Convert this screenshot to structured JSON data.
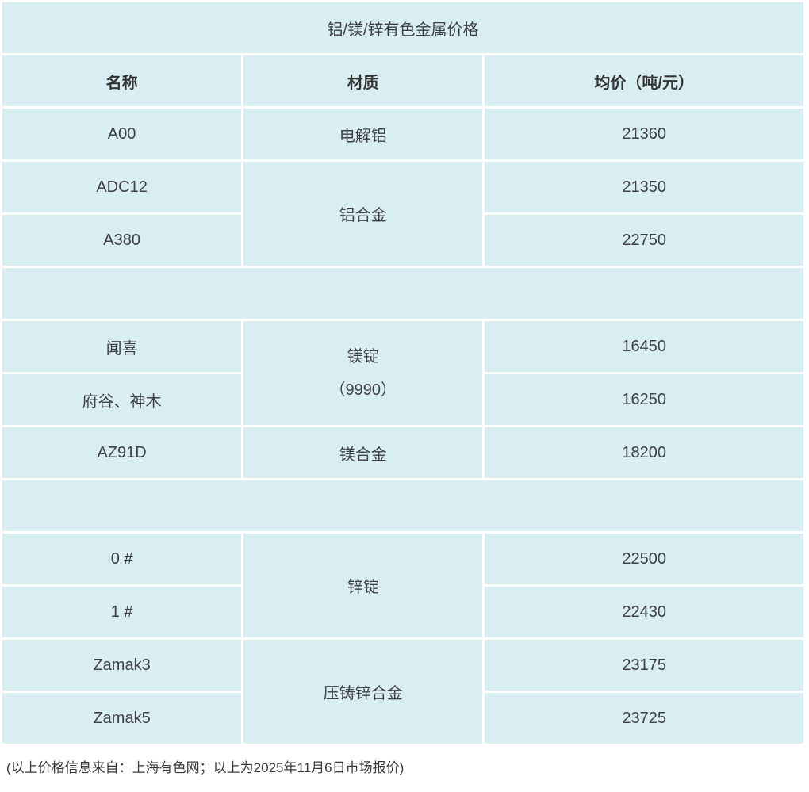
{
  "colors": {
    "page_background": "#ffffff",
    "title_bar_background": "#f1f6fa",
    "cell_background": "#d9eef3",
    "divider": "#ffffff",
    "title_text": "#2f2f2f",
    "bold_text": "#333333",
    "value_text": "#3f4045",
    "footer_text": "#3a3a3a"
  },
  "chart_data": {
    "type": "table",
    "title": "铝/镁/锌有色金属价格",
    "columns": [
      "名称",
      "材质",
      "均价（吨/元）"
    ],
    "rows": [
      {
        "cells": [
          {
            "text": "A00",
            "bold": true
          },
          {
            "text": "电解铝"
          },
          {
            "text": "21360"
          }
        ]
      },
      {
        "cells": [
          {
            "text": "ADC12",
            "bold": true
          },
          {
            "text": "铝合金",
            "rowspan": 2
          },
          {
            "text": "21350"
          }
        ]
      },
      {
        "cells": [
          {
            "text": "A380",
            "bold": true
          },
          {
            "text": "22750"
          }
        ]
      },
      {
        "spacer": true
      },
      {
        "cells": [
          {
            "text": "闻喜",
            "bold": true
          },
          {
            "lines": [
              "镁锭",
              "（9990）"
            ],
            "rowspan": 2
          },
          {
            "text": "16450"
          }
        ]
      },
      {
        "cells": [
          {
            "text": "府谷、神木",
            "bold": true
          },
          {
            "text": "16250"
          }
        ]
      },
      {
        "cells": [
          {
            "text": "AZ91D",
            "bold": true
          },
          {
            "text": "镁合金"
          },
          {
            "text": "18200"
          }
        ]
      },
      {
        "spacer": true
      },
      {
        "cells": [
          {
            "text": "0 #",
            "bold": true
          },
          {
            "text": "锌锭",
            "rowspan": 2
          },
          {
            "text": "22500"
          }
        ]
      },
      {
        "cells": [
          {
            "text": "1 #",
            "bold": true
          },
          {
            "text": "22430"
          }
        ]
      },
      {
        "cells": [
          {
            "text": "Zamak3",
            "bold": true
          },
          {
            "text": "压铸锌合金",
            "rowspan": 2
          },
          {
            "text": "23175"
          }
        ]
      },
      {
        "cells": [
          {
            "text": "Zamak5",
            "bold": true
          },
          {
            "text": "23725"
          }
        ]
      }
    ],
    "records": [
      {
        "name": "A00",
        "material": "电解铝",
        "avg_price": 21360
      },
      {
        "name": "ADC12",
        "material": "铝合金",
        "avg_price": 21350
      },
      {
        "name": "A380",
        "material": "铝合金",
        "avg_price": 22750
      },
      {
        "name": "闻喜",
        "material": "镁锭（9990）",
        "avg_price": 16450
      },
      {
        "name": "府谷、神木",
        "material": "镁锭（9990）",
        "avg_price": 16250
      },
      {
        "name": "AZ91D",
        "material": "镁合金",
        "avg_price": 18200
      },
      {
        "name": "0 #",
        "material": "锌锭",
        "avg_price": 22500
      },
      {
        "name": "1 #",
        "material": "锌锭",
        "avg_price": 22430
      },
      {
        "name": "Zamak3",
        "material": "压铸锌合金",
        "avg_price": 23175
      },
      {
        "name": "Zamak5",
        "material": "压铸锌合金",
        "avg_price": 23725
      }
    ]
  },
  "footer": {
    "note": "(以上价格信息来自：上海有色网；以上为2025年11月6日市场报价)"
  }
}
